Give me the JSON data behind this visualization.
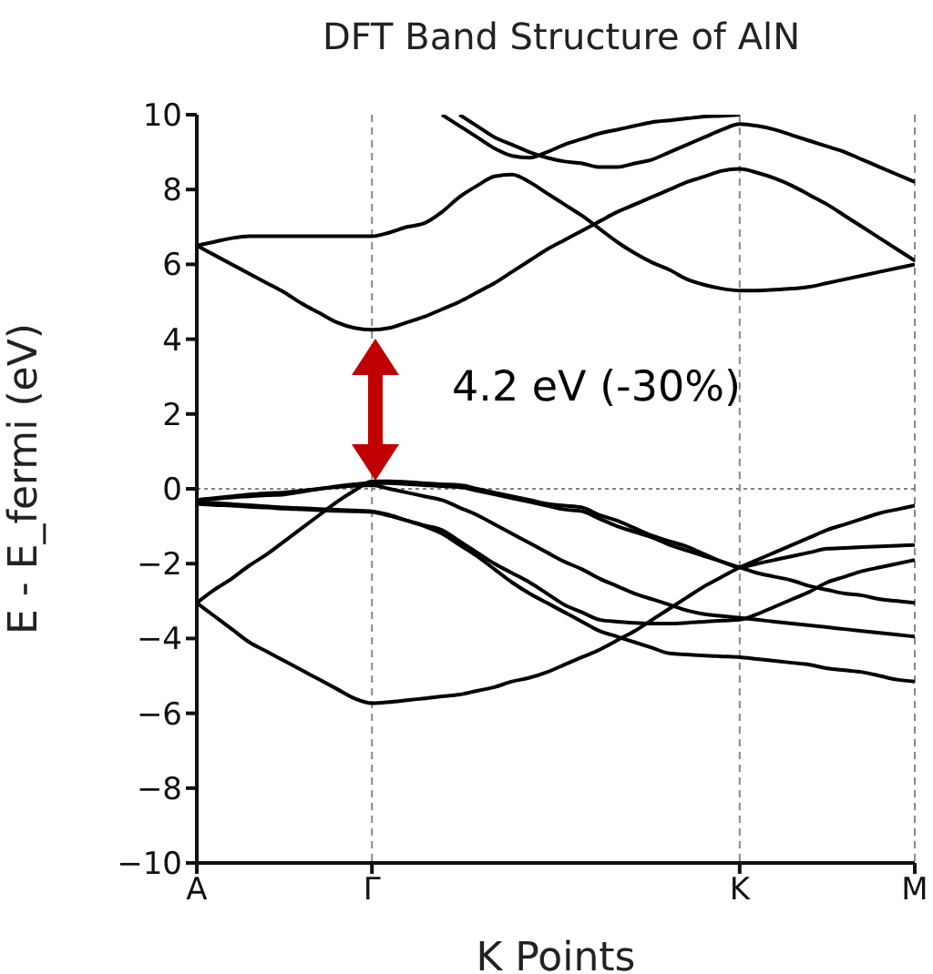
{
  "chart_data": {
    "type": "line",
    "title": "DFT Band Structure of AlN",
    "xlabel": "K Points",
    "ylabel": "E - E_fermi (eV)",
    "categories": [
      "A",
      null,
      null,
      null,
      null,
      null,
      null,
      null,
      null,
      null,
      "Γ",
      null,
      null,
      null,
      null,
      null,
      null,
      null,
      null,
      null,
      null,
      null,
      null,
      null,
      null,
      null,
      null,
      null,
      null,
      null,
      null,
      "K",
      null,
      null,
      null,
      null,
      null,
      null,
      null,
      null,
      null,
      "M"
    ],
    "ylim": [
      -10,
      10
    ],
    "yticks": [
      {
        "value": -10,
        "label": "−10"
      },
      {
        "value": -8,
        "label": "−8"
      },
      {
        "value": -6,
        "label": "−6"
      },
      {
        "value": -4,
        "label": "−4"
      },
      {
        "value": -2,
        "label": "−2"
      },
      0,
      2,
      4,
      6,
      8,
      10
    ],
    "grid": "x",
    "marker": "none",
    "line_style": "solid",
    "ref_lines": [
      {
        "axis": "y",
        "value": 0,
        "line_style": "dotted",
        "color": "#808080"
      }
    ],
    "annotations": [
      "4.2 eV (-30%)"
    ],
    "series": [
      {
        "color": "#000000",
        "values": [
          6.5,
          6.25,
          6.0,
          5.75,
          5.5,
          5.25,
          4.95,
          4.7,
          4.45,
          4.3,
          4.25,
          4.3,
          4.45,
          4.6,
          4.8,
          5.0,
          5.25,
          5.5,
          5.8,
          6.1,
          6.4,
          6.65,
          6.9,
          7.15,
          7.4,
          7.6,
          7.8,
          8.0,
          8.2,
          8.35,
          8.5,
          8.55,
          8.45,
          8.3,
          8.1,
          7.85,
          7.6,
          7.3,
          7.0,
          6.7,
          6.4,
          6.1
        ]
      },
      {
        "color": "#000000",
        "values": [
          6.5,
          6.6,
          6.7,
          6.75,
          6.75,
          6.75,
          6.75,
          6.75,
          6.75,
          6.75,
          6.75,
          6.85,
          7.0,
          7.1,
          7.4,
          7.8,
          8.1,
          8.35,
          8.4,
          8.2,
          7.9,
          7.6,
          7.3,
          6.95,
          6.6,
          6.3,
          6.05,
          5.85,
          5.6,
          5.45,
          5.35,
          5.3,
          5.3,
          5.32,
          5.35,
          5.4,
          5.5,
          5.6,
          5.7,
          5.8,
          5.9,
          6.0
        ]
      },
      {
        "color": "#000000",
        "values": [
          null,
          null,
          null,
          null,
          null,
          null,
          null,
          null,
          null,
          null,
          null,
          null,
          null,
          null,
          10,
          9.7,
          9.4,
          9.1,
          8.9,
          8.85,
          9.0,
          9.2,
          9.35,
          9.5,
          9.6,
          9.7,
          9.8,
          9.85,
          9.9,
          9.95,
          9.97,
          10,
          null,
          null,
          null,
          null,
          null,
          null,
          null,
          null,
          null,
          null
        ]
      },
      {
        "color": "#000000",
        "values": [
          null,
          null,
          null,
          null,
          null,
          null,
          null,
          null,
          null,
          null,
          null,
          null,
          null,
          null,
          null,
          10,
          9.7,
          9.4,
          9.2,
          9.0,
          8.85,
          8.75,
          8.7,
          8.6,
          8.6,
          8.7,
          8.8,
          9.0,
          9.2,
          9.4,
          9.6,
          9.75,
          9.7,
          9.6,
          9.45,
          9.3,
          9.15,
          9.0,
          8.8,
          8.6,
          8.4,
          8.2
        ]
      },
      {
        "color": "#000000",
        "values": [
          -0.3,
          -0.27,
          -0.23,
          -0.2,
          -0.17,
          -0.15,
          -0.08,
          0,
          0.07,
          0.12,
          0.15,
          0.15,
          0.13,
          0.1,
          0.07,
          0.05,
          -0.05,
          -0.15,
          -0.25,
          -0.35,
          -0.45,
          -0.55,
          -0.6,
          -0.8,
          -1.0,
          -1.15,
          -1.3,
          -1.5,
          -1.65,
          -1.8,
          -1.95,
          -2.1,
          -2.25,
          -2.35,
          -2.45,
          -2.6,
          -2.7,
          -2.8,
          -2.85,
          -2.95,
          -3.0,
          -3.05
        ]
      },
      {
        "color": "#000000",
        "values": [
          -3.05,
          -2.7,
          -2.4,
          -2.05,
          -1.75,
          -1.4,
          -1.05,
          -0.7,
          -0.35,
          -0.05,
          0.2,
          0.2,
          0.18,
          0.15,
          0.12,
          0.1,
          0.0,
          -0.1,
          -0.2,
          -0.3,
          -0.4,
          -0.45,
          -0.5,
          -0.7,
          -0.85,
          -1.05,
          -1.25,
          -1.4,
          -1.55,
          -1.75,
          -1.95,
          -2.1,
          -2.0,
          -1.9,
          -1.8,
          -1.7,
          -1.6,
          -1.58,
          -1.56,
          -1.54,
          -1.52,
          -1.5
        ]
      },
      {
        "color": "#000000",
        "values": [
          -0.3,
          -0.25,
          -0.2,
          -0.15,
          -0.12,
          -0.1,
          -0.05,
          0,
          0.05,
          0.08,
          0.1,
          0.0,
          -0.1,
          -0.2,
          -0.3,
          -0.5,
          -0.7,
          -0.95,
          -1.2,
          -1.45,
          -1.7,
          -1.95,
          -2.15,
          -2.4,
          -2.6,
          -2.8,
          -2.95,
          -3.1,
          -3.25,
          -3.35,
          -3.4,
          -3.45,
          -3.5,
          -3.55,
          -3.6,
          -3.65,
          -3.7,
          -3.75,
          -3.8,
          -3.85,
          -3.9,
          -3.95
        ]
      },
      {
        "color": "#000000",
        "values": [
          -0.35,
          -0.38,
          -0.41,
          -0.44,
          -0.47,
          -0.5,
          -0.52,
          -0.54,
          -0.56,
          -0.58,
          -0.6,
          -0.7,
          -0.85,
          -1.0,
          -1.2,
          -1.5,
          -1.8,
          -2.15,
          -2.5,
          -2.8,
          -3.05,
          -3.3,
          -3.55,
          -3.8,
          -3.95,
          -4.1,
          -4.25,
          -4.4,
          -4.43,
          -4.46,
          -4.48,
          -4.5,
          -4.55,
          -4.6,
          -4.65,
          -4.7,
          -4.8,
          -4.85,
          -4.9,
          -5.0,
          -5.1,
          -5.15
        ]
      },
      {
        "color": "#000000",
        "values": [
          -0.4,
          -0.43,
          -0.45,
          -0.48,
          -0.5,
          -0.53,
          -0.55,
          -0.57,
          -0.59,
          -0.6,
          -0.62,
          -0.72,
          -0.85,
          -0.98,
          -1.1,
          -1.4,
          -1.7,
          -2.0,
          -2.25,
          -2.5,
          -2.8,
          -3.1,
          -3.3,
          -3.5,
          -3.55,
          -3.58,
          -3.6,
          -3.6,
          -3.58,
          -3.55,
          -3.52,
          -3.5,
          -3.35,
          -3.15,
          -2.95,
          -2.75,
          -2.5,
          -2.35,
          -2.2,
          -2.1,
          -2.0,
          -1.9
        ]
      },
      {
        "color": "#000000",
        "values": [
          -3.05,
          -3.4,
          -3.75,
          -4.1,
          -4.35,
          -4.6,
          -4.85,
          -5.1,
          -5.35,
          -5.6,
          -5.73,
          -5.7,
          -5.65,
          -5.6,
          -5.55,
          -5.5,
          -5.4,
          -5.3,
          -5.15,
          -5.05,
          -4.9,
          -4.7,
          -4.5,
          -4.3,
          -4.05,
          -3.8,
          -3.5,
          -3.2,
          -2.9,
          -2.6,
          -2.35,
          -2.1,
          -1.9,
          -1.7,
          -1.5,
          -1.3,
          -1.1,
          -0.95,
          -0.8,
          -0.65,
          -0.55,
          -0.45
        ]
      }
    ]
  }
}
